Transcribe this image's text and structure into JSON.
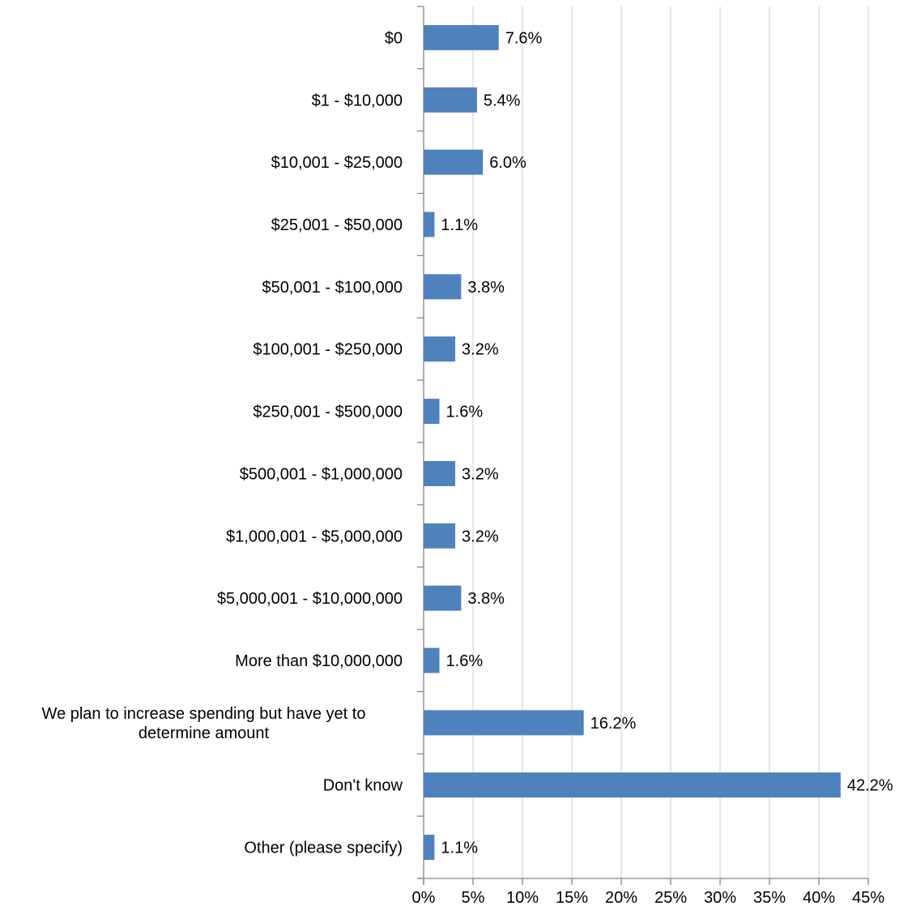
{
  "chart_data": {
    "type": "bar",
    "orientation": "horizontal",
    "title": "",
    "xlabel": "",
    "ylabel": "",
    "categories": [
      "$0",
      "$1 - $10,000",
      "$10,001 - $25,000",
      "$25,001 - $50,000",
      "$50,001 - $100,000",
      "$100,001 - $250,000",
      "$250,001 - $500,000",
      "$500,001 - $1,000,000",
      "$1,000,001 - $5,000,000",
      "$5,000,001 - $10,000,000",
      "More than $10,000,000",
      "We plan to increase spending but have yet to determine amount",
      "Don't know",
      "Other (please specify)"
    ],
    "category_label_lines": [
      [
        "$0"
      ],
      [
        "$1 - $10,000"
      ],
      [
        "$10,001 - $25,000"
      ],
      [
        "$25,001 - $50,000"
      ],
      [
        "$50,001 - $100,000"
      ],
      [
        "$100,001 - $250,000"
      ],
      [
        "$250,001 - $500,000"
      ],
      [
        "$500,001 - $1,000,000"
      ],
      [
        "$1,000,001 - $5,000,000"
      ],
      [
        "$5,000,001 - $10,000,000"
      ],
      [
        "More than $10,000,000"
      ],
      [
        "We plan to increase spending but have yet to",
        "determine amount"
      ],
      [
        "Don't know"
      ],
      [
        "Other (please specify)"
      ]
    ],
    "values": [
      7.6,
      5.4,
      6.0,
      1.1,
      3.8,
      3.2,
      1.6,
      3.2,
      3.2,
      3.8,
      1.6,
      16.2,
      42.2,
      1.1
    ],
    "value_labels": [
      "7.6%",
      "5.4%",
      "6.0%",
      "1.1%",
      "3.8%",
      "3.2%",
      "1.6%",
      "3.2%",
      "3.2%",
      "3.8%",
      "1.6%",
      "16.2%",
      "42.2%",
      "1.1%"
    ],
    "xlim": [
      0,
      45
    ],
    "x_ticks": [
      0,
      5,
      10,
      15,
      20,
      25,
      30,
      35,
      40,
      45
    ],
    "x_tick_labels": [
      "0%",
      "5%",
      "10%",
      "15%",
      "20%",
      "25%",
      "30%",
      "35%",
      "40%",
      "45%"
    ],
    "grid": "vertical",
    "legend": "none",
    "bar_color": "#4f81bd",
    "grid_color": "#d9d9d9",
    "axis_color": "#868686"
  }
}
